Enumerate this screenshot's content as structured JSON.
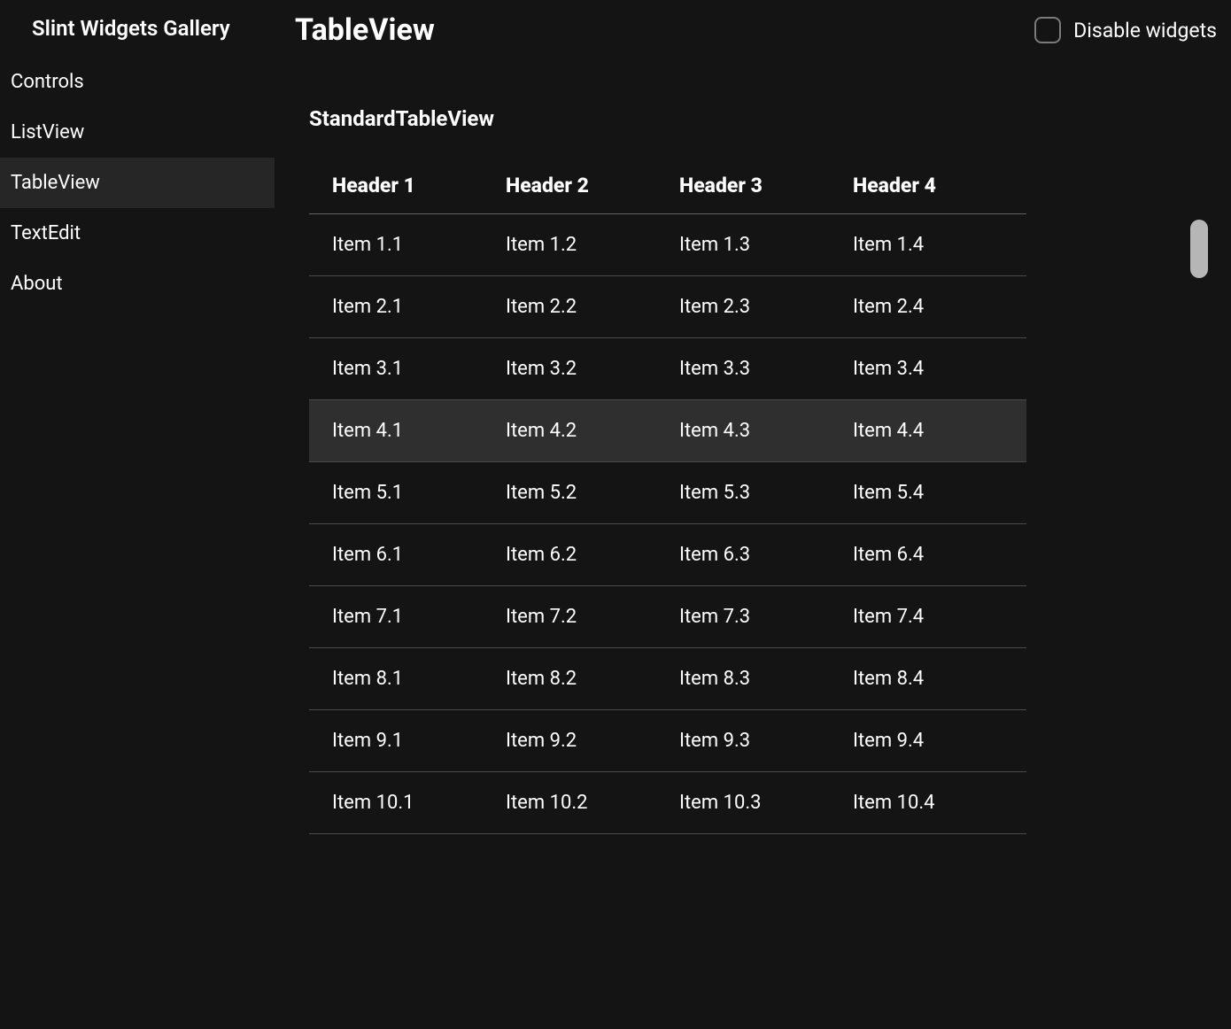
{
  "colors": {
    "background": "#141414",
    "sidebar_selected_bg": "#262626",
    "row_selected_bg": "#2f2f2f",
    "header_divider": "#626262",
    "row_divider": "#4a4a4a",
    "checkbox_border": "#7b7b7b",
    "scrollbar_thumb": "#b6b6b6",
    "text": "#ffffff"
  },
  "sidebar": {
    "title": "Slint Widgets Gallery",
    "selected_index": 2,
    "items": [
      {
        "label": "Controls"
      },
      {
        "label": "ListView"
      },
      {
        "label": "TableView"
      },
      {
        "label": "TextEdit"
      },
      {
        "label": "About"
      }
    ]
  },
  "header": {
    "title": "TableView",
    "disable_label": "Disable widgets",
    "disable_checked": false
  },
  "content": {
    "subtitle": "StandardTableView"
  },
  "table": {
    "selected_row": 3,
    "columns": [
      "Header 1",
      "Header 2",
      "Header 3",
      "Header 4"
    ],
    "rows": [
      [
        "Item 1.1",
        "Item 1.2",
        "Item 1.3",
        "Item 1.4"
      ],
      [
        "Item 2.1",
        "Item 2.2",
        "Item 2.3",
        "Item 2.4"
      ],
      [
        "Item 3.1",
        "Item 3.2",
        "Item 3.3",
        "Item 3.4"
      ],
      [
        "Item 4.1",
        "Item 4.2",
        "Item 4.3",
        "Item 4.4"
      ],
      [
        "Item 5.1",
        "Item 5.2",
        "Item 5.3",
        "Item 5.4"
      ],
      [
        "Item 6.1",
        "Item 6.2",
        "Item 6.3",
        "Item 6.4"
      ],
      [
        "Item 7.1",
        "Item 7.2",
        "Item 7.3",
        "Item 7.4"
      ],
      [
        "Item 8.1",
        "Item 8.2",
        "Item 8.3",
        "Item 8.4"
      ],
      [
        "Item 9.1",
        "Item 9.2",
        "Item 9.3",
        "Item 9.4"
      ],
      [
        "Item 10.1",
        "Item 10.2",
        "Item 10.3",
        "Item 10.4"
      ]
    ]
  }
}
